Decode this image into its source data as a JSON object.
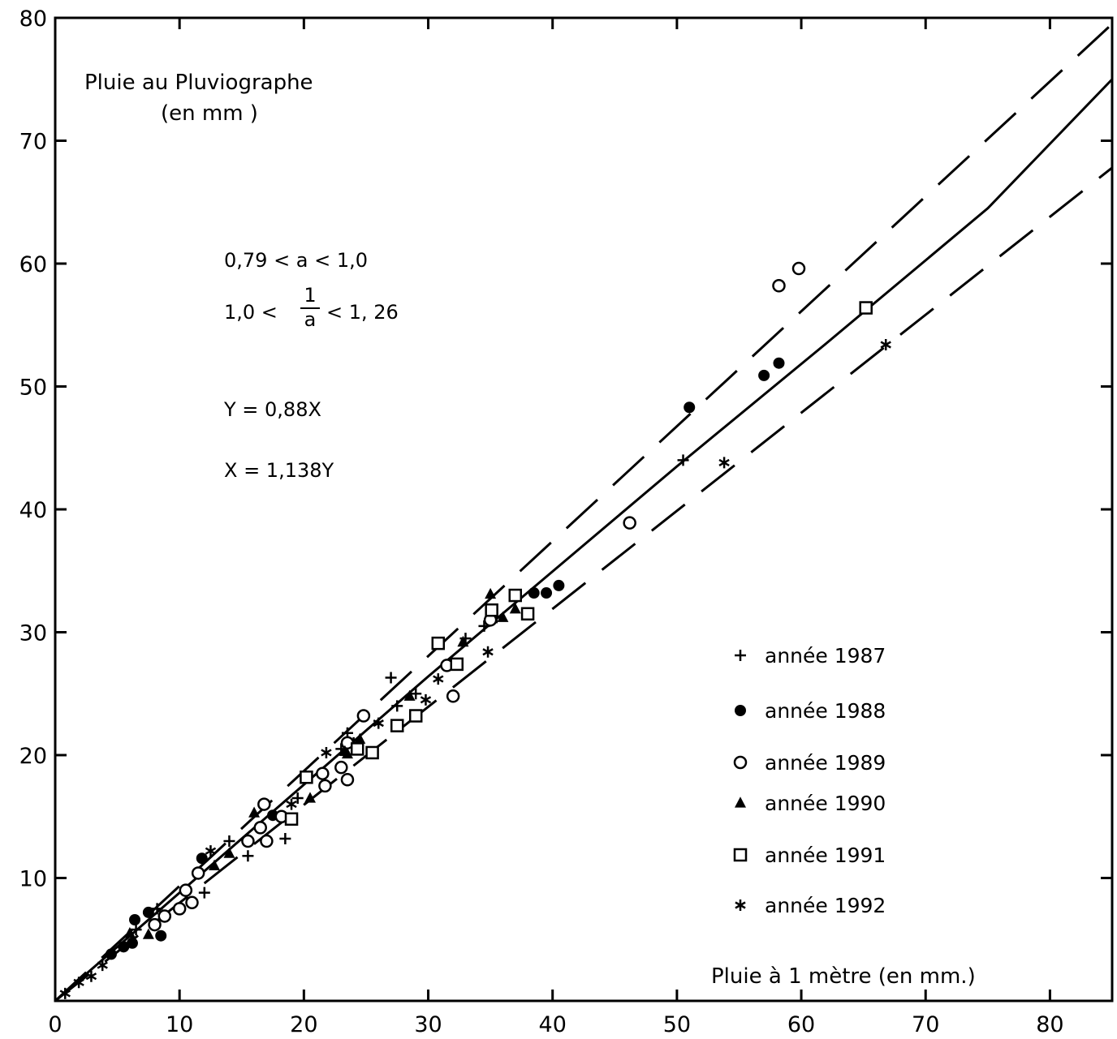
{
  "chart_data": {
    "type": "scatter",
    "y_title_line1": "Pluie   au Pluviographe",
    "y_title_line2": "(en mm )",
    "x_title": "Pluie à 1 mètre (en mm.)",
    "xlim": [
      0,
      85
    ],
    "ylim": [
      0,
      80
    ],
    "x_ticks": [
      0,
      10,
      20,
      30,
      40,
      50,
      60,
      70,
      80
    ],
    "y_ticks": [
      10,
      20,
      30,
      40,
      50,
      60,
      70,
      80
    ],
    "x_tick_labels": [
      "0",
      "10",
      "20",
      "30",
      "40",
      "50",
      "60",
      "70",
      "80"
    ],
    "y_tick_labels": [
      "10",
      "20",
      "30",
      "40",
      "50",
      "60",
      "70",
      "80"
    ],
    "annotations": {
      "range_a": "0,79 < a < 1,0",
      "range_inv_a": "1,0 < 1/a < 1,26",
      "inv_a_num": "1",
      "inv_a_den": "a",
      "inv_a_left": "1,0 <",
      "inv_a_right": "< 1, 26",
      "eq_y": "Y = 0,88X",
      "eq_x": "X = 1,138Y"
    },
    "legend_placement": "bottom-right",
    "grid": false,
    "lines": [
      {
        "style": "solid",
        "points": [
          [
            0,
            0
          ],
          [
            30,
            26.4
          ],
          [
            50,
            43.5
          ],
          [
            62,
            53.5
          ],
          [
            75,
            64.5
          ],
          [
            85,
            75
          ]
        ]
      },
      {
        "style": "dashed",
        "points": [
          [
            0,
            0
          ],
          [
            85,
            79.5
          ]
        ]
      },
      {
        "style": "dashed",
        "points": [
          [
            0,
            0
          ],
          [
            85,
            67.8
          ]
        ]
      }
    ],
    "series": [
      {
        "name": "année 1987",
        "marker": "plus",
        "points": [
          [
            6.5,
            5.8
          ],
          [
            8.2,
            7.5
          ],
          [
            12,
            8.8
          ],
          [
            14,
            13
          ],
          [
            15.5,
            11.8
          ],
          [
            18.5,
            13.2
          ],
          [
            19.5,
            16.5
          ],
          [
            23,
            20.5
          ],
          [
            23.5,
            21.8
          ],
          [
            24,
            21
          ],
          [
            27,
            26.3
          ],
          [
            27.5,
            24
          ],
          [
            29,
            25
          ],
          [
            33,
            29.5
          ],
          [
            34.5,
            30.5
          ],
          [
            35.5,
            31.2
          ],
          [
            50.5,
            44
          ]
        ]
      },
      {
        "name": "année 1988",
        "marker": "filled-circle",
        "points": [
          [
            4.5,
            3.8
          ],
          [
            5.5,
            4.4
          ],
          [
            6.2,
            4.7
          ],
          [
            6.4,
            6.6
          ],
          [
            7.5,
            7.2
          ],
          [
            8.5,
            5.3
          ],
          [
            11.8,
            11.6
          ],
          [
            17.5,
            15.1
          ],
          [
            38.5,
            33.2
          ],
          [
            39.5,
            33.2
          ],
          [
            40.5,
            33.8
          ],
          [
            51,
            48.3
          ],
          [
            57,
            50.9
          ],
          [
            58.2,
            51.9
          ]
        ]
      },
      {
        "name": "année 1989",
        "marker": "open-circle",
        "points": [
          [
            8,
            6.2
          ],
          [
            8.8,
            6.9
          ],
          [
            10,
            7.5
          ],
          [
            10.5,
            9
          ],
          [
            11,
            8
          ],
          [
            11.5,
            10.4
          ],
          [
            15.5,
            13
          ],
          [
            16.5,
            14.1
          ],
          [
            16.8,
            16
          ],
          [
            17,
            13
          ],
          [
            18.2,
            15
          ],
          [
            21.5,
            18.5
          ],
          [
            21.7,
            17.5
          ],
          [
            23,
            19
          ],
          [
            23.5,
            21
          ],
          [
            23.5,
            18
          ],
          [
            24.8,
            23.2
          ],
          [
            31.5,
            27.3
          ],
          [
            32,
            24.8
          ],
          [
            35,
            31
          ],
          [
            46.2,
            38.9
          ],
          [
            58.2,
            58.2
          ],
          [
            59.8,
            59.6
          ]
        ]
      },
      {
        "name": "année 1990",
        "marker": "triangle",
        "points": [
          [
            6,
            5.5
          ],
          [
            7.5,
            5.4
          ],
          [
            12.8,
            11
          ],
          [
            14,
            12
          ],
          [
            16,
            15.3
          ],
          [
            20.5,
            16.5
          ],
          [
            23.3,
            20.3
          ],
          [
            23.5,
            20.1
          ],
          [
            24.5,
            21.3
          ],
          [
            28.5,
            24.8
          ],
          [
            32.8,
            29.2
          ],
          [
            35,
            33.1
          ],
          [
            36,
            31.2
          ],
          [
            37,
            31.9
          ]
        ]
      },
      {
        "name": "année 1991",
        "marker": "open-square",
        "points": [
          [
            19,
            14.8
          ],
          [
            20.2,
            18.2
          ],
          [
            24.3,
            20.5
          ],
          [
            25.5,
            20.2
          ],
          [
            27.5,
            22.4
          ],
          [
            29,
            23.2
          ],
          [
            30.8,
            29.1
          ],
          [
            32.3,
            27.4
          ],
          [
            35.1,
            31.8
          ],
          [
            37,
            33
          ],
          [
            38,
            31.5
          ],
          [
            65.2,
            56.4
          ]
        ]
      },
      {
        "name": "année 1992",
        "marker": "asterisk",
        "points": [
          [
            0.8,
            0.6
          ],
          [
            1.9,
            1.5
          ],
          [
            2.9,
            2
          ],
          [
            3.8,
            2.9
          ],
          [
            12.5,
            12.2
          ],
          [
            19,
            16
          ],
          [
            21.8,
            20.2
          ],
          [
            26,
            22.6
          ],
          [
            29.8,
            24.5
          ],
          [
            30.8,
            26.2
          ],
          [
            34.8,
            28.4
          ],
          [
            53.8,
            43.8
          ],
          [
            66.8,
            53.4
          ]
        ]
      }
    ]
  }
}
